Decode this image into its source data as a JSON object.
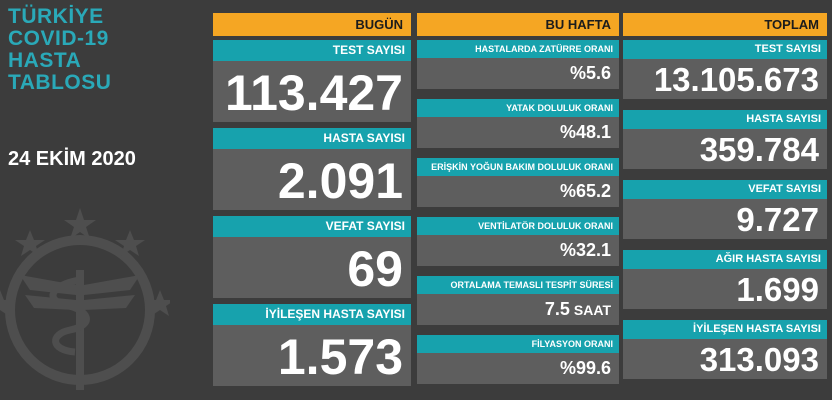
{
  "title_lines": [
    "TÜRKİYE",
    "COVID-19",
    "HASTA",
    "TABLOSU"
  ],
  "date": "24 EKİM 2020",
  "colors": {
    "background": "#3c3c3c",
    "header": "#f5a623",
    "label": "#17a2ad",
    "value": "#5e5e5e",
    "title": "#2aa9b8"
  },
  "icons": [
    "ministry-emblem-icon"
  ],
  "bugun": {
    "header": "BUGÜN",
    "items": [
      {
        "label": "TEST SAYISI",
        "value": "113.427"
      },
      {
        "label": "HASTA SAYISI",
        "value": "2.091"
      },
      {
        "label": "VEFAT SAYISI",
        "value": "69"
      },
      {
        "label": "İYİLEŞEN HASTA SAYISI",
        "value": "1.573"
      }
    ]
  },
  "bu_hafta": {
    "header": "BU HAFTA",
    "items": [
      {
        "label": "HASTALARDA ZATÜRRE ORANI",
        "value": "%5.6"
      },
      {
        "label": "YATAK DOLULUK ORANI",
        "value": "%48.1"
      },
      {
        "label": "ERİŞKİN YOĞUN BAKIM DOLULUK ORANI",
        "value": "%65.2"
      },
      {
        "label": "VENTİLATÖR DOLULUK ORANI",
        "value": "%32.1"
      },
      {
        "label": "ORTALAMA TEMASLI TESPİT SÜRESİ",
        "value": "7.5",
        "unit": "SAAT"
      },
      {
        "label": "FİLYASYON ORANI",
        "value": "%99.6"
      }
    ]
  },
  "toplam": {
    "header": "TOPLAM",
    "items": [
      {
        "label": "TEST SAYISI",
        "value": "13.105.673"
      },
      {
        "label": "HASTA SAYISI",
        "value": "359.784"
      },
      {
        "label": "VEFAT SAYISI",
        "value": "9.727"
      },
      {
        "label": "AĞIR HASTA SAYISI",
        "value": "1.699"
      },
      {
        "label": "İYİLEŞEN HASTA SAYISI",
        "value": "313.093"
      }
    ]
  }
}
